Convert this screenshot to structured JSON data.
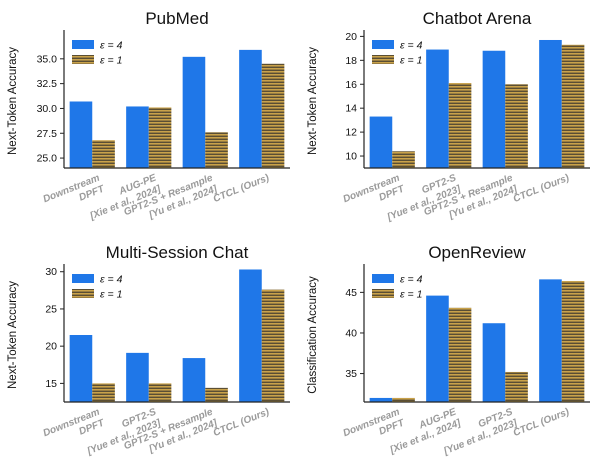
{
  "colors": {
    "eps4": "#1f77e8",
    "eps1": "#c9a24a",
    "hatch": "#2b2b2b"
  },
  "legend": {
    "eps4": "ε = 4",
    "eps1": "ε = 1"
  },
  "chart_data": [
    {
      "type": "bar",
      "title": "PubMed",
      "ylabel": "Next-Token Accuracy",
      "xlabel": "",
      "ylim": [
        24,
        37.5
      ],
      "yticks": [
        25.0,
        27.5,
        30.0,
        32.5,
        35.0
      ],
      "ytick_decimals": 1,
      "categories": [
        [
          "Downstream",
          "DPFT"
        ],
        [
          "AUG-PE",
          "[Xie et al., 2024]"
        ],
        [
          "GPT2-S + Resample",
          "[Yu et al., 2024]"
        ],
        [
          "CTCL (Ours)"
        ]
      ],
      "series": [
        {
          "name": "ε = 4",
          "values": [
            30.7,
            30.2,
            35.2,
            35.9
          ]
        },
        {
          "name": "ε = 1",
          "values": [
            26.8,
            30.1,
            27.6,
            34.5
          ]
        }
      ],
      "legend_position": "top-left"
    },
    {
      "type": "bar",
      "title": "Chatbot Arena",
      "ylabel": "Next-Token Accuracy",
      "xlabel": "",
      "ylim": [
        9,
        20.2
      ],
      "yticks": [
        10,
        12,
        14,
        16,
        18,
        20
      ],
      "ytick_decimals": 0,
      "categories": [
        [
          "Downstream",
          "DPFT"
        ],
        [
          "GPT2-S",
          "[Yue et al., 2023]"
        ],
        [
          "GPT2-S + Resample",
          "[Yu et al., 2024]"
        ],
        [
          "CTCL (Ours)"
        ]
      ],
      "series": [
        {
          "name": "ε = 4",
          "values": [
            13.3,
            18.9,
            18.8,
            19.7
          ]
        },
        {
          "name": "ε = 1",
          "values": [
            10.4,
            16.1,
            16.0,
            19.3
          ]
        }
      ],
      "legend_position": "top-left"
    },
    {
      "type": "bar",
      "title": "Multi-Session Chat",
      "ylabel": "Next-Token Accuracy",
      "xlabel": "",
      "ylim": [
        12.5,
        30.5
      ],
      "yticks": [
        15,
        20,
        25,
        30
      ],
      "ytick_decimals": 0,
      "categories": [
        [
          "Downstream",
          "DPFT"
        ],
        [
          "GPT2-S",
          "[Yue et al., 2023]"
        ],
        [
          "GPT2-S + Resample",
          "[Yu et al., 2024]"
        ],
        [
          "CTCL (Ours)"
        ]
      ],
      "series": [
        {
          "name": "ε = 4",
          "values": [
            21.5,
            19.1,
            18.4,
            30.3
          ]
        },
        {
          "name": "ε = 1",
          "values": [
            15.0,
            15.0,
            14.4,
            27.6
          ]
        }
      ],
      "legend_position": "top-left"
    },
    {
      "type": "bar",
      "title": "OpenReview",
      "ylabel": "Classification Accuracy",
      "xlabel": "",
      "ylim": [
        31.5,
        48
      ],
      "yticks": [
        35,
        40,
        45
      ],
      "ytick_decimals": 0,
      "categories": [
        [
          "Downstream",
          "DPFT"
        ],
        [
          "AUG-PE",
          "[Xie et al., 2024]"
        ],
        [
          "GPT2-S",
          "[Yue et al., 2023]"
        ],
        [
          "CTCL (Ours)"
        ]
      ],
      "series": [
        {
          "name": "ε = 4",
          "values": [
            32.0,
            44.6,
            41.2,
            46.6
          ]
        },
        {
          "name": "ε = 1",
          "values": [
            32.0,
            43.1,
            35.2,
            46.4
          ]
        }
      ],
      "legend_position": "top-left"
    }
  ]
}
